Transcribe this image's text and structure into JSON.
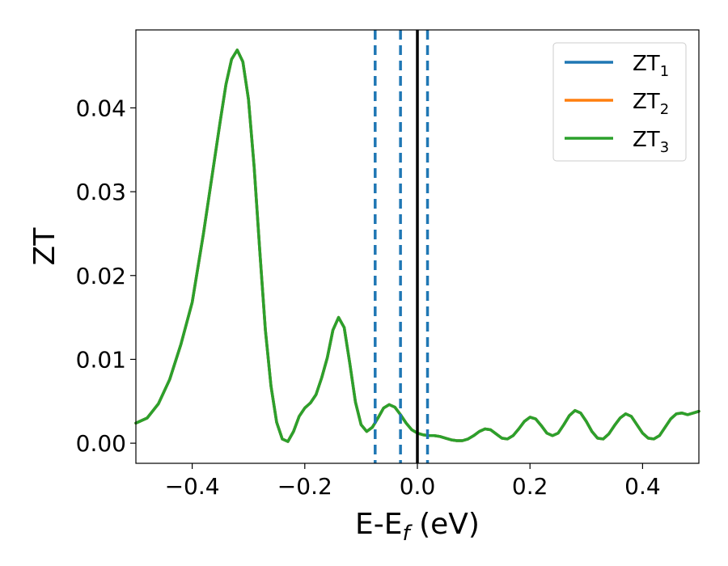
{
  "chart_data": {
    "type": "line",
    "xlabel": "E-E",
    "xlabel_sub": "f",
    "xlabel_unit": " (eV)",
    "ylabel": "ZT",
    "xlim": [
      -0.5,
      0.5
    ],
    "ylim": [
      -0.0024,
      0.0493
    ],
    "xticks": [
      -0.4,
      -0.2,
      0.0,
      0.2,
      0.4
    ],
    "xtick_labels": [
      "−0.4",
      "−0.2",
      "0.0",
      "0.2",
      "0.4"
    ],
    "yticks": [
      0.0,
      0.01,
      0.02,
      0.03,
      0.04
    ],
    "ytick_labels": [
      "0.00",
      "0.01",
      "0.02",
      "0.03",
      "0.04"
    ],
    "grid": false,
    "legend_position": "top-right",
    "series": [
      {
        "name": "ZT",
        "sub": "1",
        "color": "#1f77b4"
      },
      {
        "name": "ZT",
        "sub": "2",
        "color": "#ff7f0e"
      },
      {
        "name": "ZT",
        "sub": "3",
        "color": "#2ca02c"
      }
    ],
    "x": [
      -0.5,
      -0.48,
      -0.46,
      -0.44,
      -0.42,
      -0.4,
      -0.38,
      -0.36,
      -0.35,
      -0.34,
      -0.33,
      -0.32,
      -0.31,
      -0.3,
      -0.29,
      -0.28,
      -0.27,
      -0.26,
      -0.25,
      -0.24,
      -0.23,
      -0.22,
      -0.21,
      -0.2,
      -0.19,
      -0.18,
      -0.17,
      -0.16,
      -0.15,
      -0.14,
      -0.13,
      -0.12,
      -0.11,
      -0.1,
      -0.09,
      -0.08,
      -0.07,
      -0.06,
      -0.05,
      -0.04,
      -0.03,
      -0.02,
      -0.01,
      0.0,
      0.01,
      0.02,
      0.03,
      0.04,
      0.05,
      0.06,
      0.07,
      0.08,
      0.09,
      0.1,
      0.11,
      0.12,
      0.13,
      0.14,
      0.15,
      0.16,
      0.17,
      0.18,
      0.19,
      0.2,
      0.21,
      0.22,
      0.23,
      0.24,
      0.25,
      0.26,
      0.27,
      0.28,
      0.29,
      0.3,
      0.31,
      0.32,
      0.33,
      0.34,
      0.35,
      0.36,
      0.37,
      0.38,
      0.39,
      0.4,
      0.41,
      0.42,
      0.43,
      0.44,
      0.45,
      0.46,
      0.47,
      0.48,
      0.49,
      0.5
    ],
    "y": [
      0.0024,
      0.003,
      0.0047,
      0.0076,
      0.0118,
      0.0168,
      0.025,
      0.034,
      0.0385,
      0.0428,
      0.0458,
      0.0469,
      0.0455,
      0.041,
      0.033,
      0.023,
      0.0135,
      0.0068,
      0.0025,
      0.0005,
      0.0002,
      0.0014,
      0.0032,
      0.0042,
      0.0048,
      0.0058,
      0.0078,
      0.0102,
      0.0135,
      0.015,
      0.0138,
      0.0095,
      0.0049,
      0.0022,
      0.0014,
      0.0019,
      0.003,
      0.0042,
      0.0046,
      0.0043,
      0.0034,
      0.0024,
      0.0016,
      0.0012,
      0.001,
      0.0009,
      0.0009,
      0.0008,
      0.0006,
      0.0004,
      0.0003,
      0.0003,
      0.0005,
      0.0009,
      0.0014,
      0.0017,
      0.0016,
      0.0011,
      0.0006,
      0.0005,
      0.0009,
      0.0017,
      0.0026,
      0.0031,
      0.0029,
      0.0021,
      0.0012,
      0.0009,
      0.0012,
      0.0022,
      0.0033,
      0.0039,
      0.0036,
      0.0026,
      0.0014,
      0.0006,
      0.0005,
      0.0011,
      0.0021,
      0.003,
      0.0035,
      0.0032,
      0.0022,
      0.0012,
      0.0006,
      0.0005,
      0.0009,
      0.0019,
      0.0029,
      0.0035,
      0.0036,
      0.0034,
      0.0036,
      0.0038
    ],
    "vlines": [
      {
        "x": -0.075,
        "style": "dashed",
        "color": "#1f77b4"
      },
      {
        "x": -0.03,
        "style": "dashed",
        "color": "#1f77b4"
      },
      {
        "x": 0.0,
        "style": "solid",
        "color": "#000000"
      },
      {
        "x": 0.018,
        "style": "dashed",
        "color": "#1f77b4"
      }
    ]
  }
}
